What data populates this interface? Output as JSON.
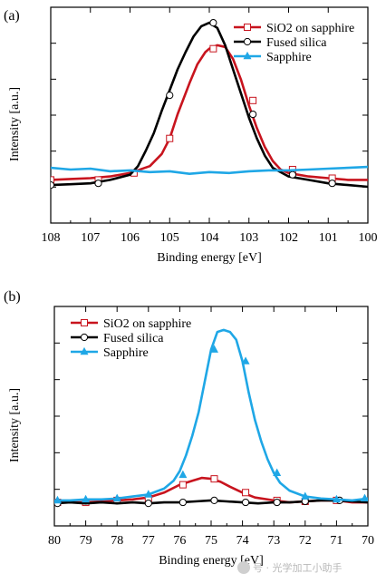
{
  "chart_data": [
    {
      "type": "line",
      "panel_label": "(a)",
      "xlabel": "Binding energy [eV]",
      "ylabel": "Intensity [a.u.]",
      "xlim": [
        108,
        100
      ],
      "x_reversed": true,
      "xticks": [
        108,
        107,
        106,
        105,
        104,
        103,
        102,
        101,
        100
      ],
      "ylim": [
        -0.25,
        1.0
      ],
      "y_tick_labels_shown": false,
      "legend_position": "top-right",
      "series": [
        {
          "name": "SiO2 on sapphire",
          "color": "#c8141e",
          "marker": "square-open",
          "x": [
            108,
            107.5,
            107,
            106.5,
            106,
            105.5,
            105.2,
            105,
            104.8,
            104.5,
            104.3,
            104.1,
            104,
            103.8,
            103.6,
            103.4,
            103.2,
            103,
            102.8,
            102.6,
            102.4,
            102.2,
            102,
            101.5,
            101,
            100.5,
            100
          ],
          "y": [
            0.0,
            0.005,
            0.01,
            0.02,
            0.04,
            0.08,
            0.15,
            0.24,
            0.38,
            0.56,
            0.67,
            0.74,
            0.76,
            0.78,
            0.77,
            0.7,
            0.58,
            0.43,
            0.3,
            0.19,
            0.11,
            0.06,
            0.04,
            0.02,
            0.01,
            0.0,
            0.0
          ],
          "marker_x": [
            108,
            106.8,
            105.9,
            105,
            103.9,
            102.9,
            101.9,
            100.9
          ],
          "marker_y": [
            0.0,
            0.0,
            0.04,
            0.24,
            0.76,
            0.46,
            0.06,
            0.01
          ]
        },
        {
          "name": "Fused silica",
          "color": "#000000",
          "marker": "circle-open",
          "x": [
            108,
            107.5,
            107,
            106.5,
            106,
            105.8,
            105.6,
            105.4,
            105.2,
            105,
            104.8,
            104.6,
            104.4,
            104.2,
            104,
            103.8,
            103.6,
            103.4,
            103.2,
            103,
            102.8,
            102.6,
            102.4,
            102,
            101.5,
            101,
            100.5,
            100
          ],
          "y": [
            -0.03,
            -0.025,
            -0.02,
            0.0,
            0.03,
            0.08,
            0.17,
            0.27,
            0.4,
            0.52,
            0.64,
            0.74,
            0.83,
            0.89,
            0.91,
            0.88,
            0.78,
            0.64,
            0.5,
            0.36,
            0.24,
            0.14,
            0.07,
            0.02,
            0.0,
            -0.02,
            -0.03,
            -0.04
          ],
          "marker_x": [
            108,
            106.8,
            105,
            103.9,
            102.9,
            101.9,
            100.9
          ],
          "marker_y": [
            -0.03,
            -0.02,
            0.49,
            0.91,
            0.38,
            0.03,
            -0.02
          ]
        },
        {
          "name": "Sapphire",
          "color": "#1fa7e6",
          "marker": "triangle-filled",
          "x": [
            108,
            107.5,
            107,
            106.5,
            106,
            105.5,
            105,
            104.5,
            104,
            103.5,
            103,
            102.5,
            102,
            101.5,
            101,
            100.5,
            100
          ],
          "y": [
            0.07,
            0.06,
            0.065,
            0.05,
            0.055,
            0.045,
            0.05,
            0.035,
            0.045,
            0.04,
            0.05,
            0.055,
            0.055,
            0.06,
            0.065,
            0.07,
            0.075
          ],
          "marker_x": [],
          "marker_y": []
        }
      ]
    },
    {
      "type": "line",
      "panel_label": "(b)",
      "xlabel": "Binding energy [eV]",
      "ylabel": "Intensity [a.u.]",
      "xlim": [
        80,
        70
      ],
      "x_reversed": true,
      "xticks": [
        80,
        79,
        78,
        77,
        76,
        75,
        74,
        73,
        72,
        71,
        70
      ],
      "ylim": [
        -0.12,
        1.0
      ],
      "y_tick_labels_shown": false,
      "legend_position": "top-left",
      "series": [
        {
          "name": "SiO2 on sapphire",
          "color": "#c8141e",
          "marker": "square-open",
          "x": [
            80,
            79.5,
            79,
            78.5,
            78,
            77.5,
            77,
            76.5,
            76,
            75.6,
            75.3,
            75,
            74.7,
            74.4,
            74,
            73.6,
            73,
            72.5,
            72,
            71.5,
            71,
            70.5,
            70
          ],
          "y": [
            0.0,
            0.0,
            0.0,
            0.005,
            0.01,
            0.015,
            0.025,
            0.05,
            0.09,
            0.11,
            0.125,
            0.12,
            0.105,
            0.08,
            0.05,
            0.025,
            0.01,
            0.0,
            0.005,
            0.01,
            0.01,
            0.0,
            0.0
          ],
          "marker_x": [
            79.9,
            79,
            78,
            77,
            75.9,
            74.9,
            73.9,
            72.9,
            72,
            71
          ],
          "marker_y": [
            0.0,
            0.0,
            0.01,
            0.02,
            0.09,
            0.12,
            0.05,
            0.01,
            0.005,
            0.01
          ]
        },
        {
          "name": "Fused silica",
          "color": "#000000",
          "marker": "circle-open",
          "x": [
            80,
            79.5,
            79,
            78.5,
            78,
            77.5,
            77,
            76.5,
            76,
            75.5,
            75,
            74.5,
            74,
            73.5,
            73,
            72.5,
            72,
            71.5,
            71,
            70.5,
            70
          ],
          "y": [
            -0.005,
            0.0,
            -0.005,
            0.0,
            -0.005,
            0.0,
            -0.005,
            0.0,
            0.0,
            0.005,
            0.01,
            0.005,
            0.0,
            -0.005,
            0.0,
            0.0,
            0.005,
            0.01,
            0.01,
            0.005,
            0.0
          ],
          "marker_x": [
            79.9,
            77,
            75.9,
            74.9,
            73.9,
            72.9,
            72,
            70.9
          ],
          "marker_y": [
            -0.005,
            -0.005,
            0.0,
            0.01,
            0.0,
            0.0,
            0.005,
            0.01
          ]
        },
        {
          "name": "Sapphire",
          "color": "#1fa7e6",
          "marker": "triangle-filled",
          "x": [
            80,
            79.5,
            79,
            78.5,
            78,
            77.5,
            77,
            76.5,
            76.2,
            76,
            75.8,
            75.6,
            75.4,
            75.2,
            75,
            74.8,
            74.6,
            74.4,
            74.2,
            74,
            73.8,
            73.6,
            73.4,
            73.2,
            73,
            72.8,
            72.5,
            72,
            71.5,
            71,
            70.5,
            70
          ],
          "y": [
            0.01,
            0.01,
            0.015,
            0.015,
            0.02,
            0.03,
            0.04,
            0.07,
            0.11,
            0.16,
            0.24,
            0.34,
            0.46,
            0.62,
            0.78,
            0.87,
            0.88,
            0.87,
            0.83,
            0.72,
            0.56,
            0.42,
            0.31,
            0.22,
            0.15,
            0.1,
            0.06,
            0.03,
            0.02,
            0.015,
            0.01,
            0.02
          ],
          "marker_x": [
            79.9,
            79,
            78,
            77,
            75.9,
            74.9,
            73.9,
            72.9,
            72,
            71,
            70.1
          ],
          "marker_y": [
            0.01,
            0.015,
            0.02,
            0.04,
            0.14,
            0.78,
            0.72,
            0.15,
            0.03,
            0.015,
            0.02
          ]
        }
      ]
    }
  ],
  "watermark": "号 · 光学加工小助手"
}
